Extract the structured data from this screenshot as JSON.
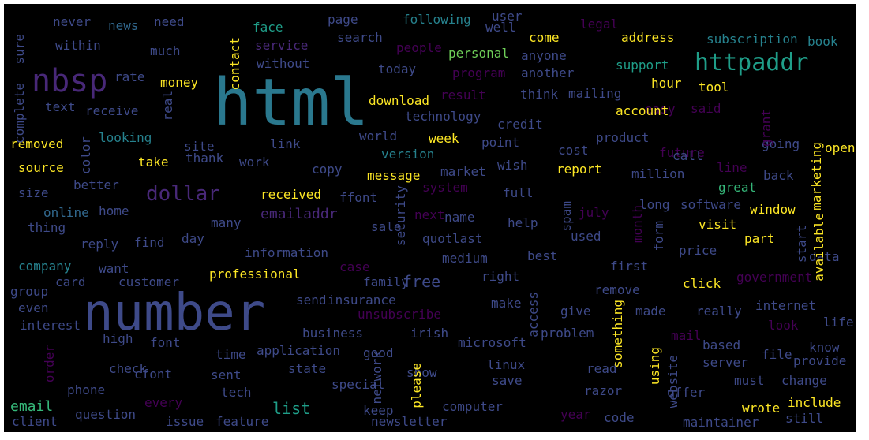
{
  "colors": {
    "background": "#000000",
    "palette": [
      "#b5de2b",
      "#2a788e",
      "#1f9e89",
      "#482878",
      "#fde725",
      "#35b779",
      "#3e4a89",
      "#6ece58",
      "#440154",
      "#26828e",
      "#31688e"
    ]
  },
  "words": [
    {
      "text": "html",
      "c": 1
    },
    {
      "text": "number",
      "c": 6
    },
    {
      "text": "nbsp",
      "c": 3
    },
    {
      "text": "httpaddr",
      "c": 2
    },
    {
      "text": "dollar",
      "c": 3
    },
    {
      "text": "emailaddr",
      "c": 3
    },
    {
      "text": "free",
      "c": 6
    },
    {
      "text": "list",
      "c": 2
    },
    {
      "text": "email",
      "c": 5
    },
    {
      "text": "never",
      "c": 6
    },
    {
      "text": "news",
      "c": 10
    },
    {
      "text": "need",
      "c": 6
    },
    {
      "text": "face",
      "c": 2
    },
    {
      "text": "page",
      "c": 6
    },
    {
      "text": "following",
      "c": 9
    },
    {
      "text": "user",
      "c": 6
    },
    {
      "text": "legal",
      "c": 8
    },
    {
      "text": "within",
      "c": 6
    },
    {
      "text": "much",
      "c": 6
    },
    {
      "text": "service",
      "c": 3
    },
    {
      "text": "search",
      "c": 6
    },
    {
      "text": "people",
      "c": 8
    },
    {
      "text": "well",
      "c": 6
    },
    {
      "text": "come",
      "c": 4
    },
    {
      "text": "address",
      "c": 4
    },
    {
      "text": "subscription",
      "c": 9
    },
    {
      "text": "book",
      "c": 9
    },
    {
      "text": "without",
      "c": 6
    },
    {
      "text": "personal",
      "c": 7
    },
    {
      "text": "anyone",
      "c": 6
    },
    {
      "text": "support",
      "c": 2
    },
    {
      "text": "rate",
      "c": 6
    },
    {
      "text": "money",
      "c": 4
    },
    {
      "text": "today",
      "c": 6
    },
    {
      "text": "program",
      "c": 8
    },
    {
      "text": "another",
      "c": 6
    },
    {
      "text": "hour",
      "c": 4
    },
    {
      "text": "tool",
      "c": 4
    },
    {
      "text": "text",
      "c": 6
    },
    {
      "text": "receive",
      "c": 6
    },
    {
      "text": "download",
      "c": 4
    },
    {
      "text": "result",
      "c": 8
    },
    {
      "text": "think",
      "c": 6
    },
    {
      "text": "mailing",
      "c": 6
    },
    {
      "text": "easy",
      "c": 8
    },
    {
      "text": "said",
      "c": 8
    },
    {
      "text": "technology",
      "c": 6
    },
    {
      "text": "account",
      "c": 4
    },
    {
      "text": "credit",
      "c": 6
    },
    {
      "text": "looking",
      "c": 9
    },
    {
      "text": "world",
      "c": 6
    },
    {
      "text": "week",
      "c": 4
    },
    {
      "text": "product",
      "c": 6
    },
    {
      "text": "future",
      "c": 8
    },
    {
      "text": "removed",
      "c": 4
    },
    {
      "text": "site",
      "c": 6
    },
    {
      "text": "link",
      "c": 6
    },
    {
      "text": "point",
      "c": 6
    },
    {
      "text": "cost",
      "c": 6
    },
    {
      "text": "call",
      "c": 6
    },
    {
      "text": "going",
      "c": 6
    },
    {
      "text": "open",
      "c": 4
    },
    {
      "text": "version",
      "c": 9
    },
    {
      "text": "source",
      "c": 4
    },
    {
      "text": "take",
      "c": 4
    },
    {
      "text": "thank",
      "c": 6
    },
    {
      "text": "work",
      "c": 6
    },
    {
      "text": "copy",
      "c": 6
    },
    {
      "text": "market",
      "c": 6
    },
    {
      "text": "wish",
      "c": 6
    },
    {
      "text": "report",
      "c": 4
    },
    {
      "text": "million",
      "c": 6
    },
    {
      "text": "line",
      "c": 8
    },
    {
      "text": "back",
      "c": 6
    },
    {
      "text": "message",
      "c": 4
    },
    {
      "text": "size",
      "c": 6
    },
    {
      "text": "better",
      "c": 6
    },
    {
      "text": "system",
      "c": 8
    },
    {
      "text": "full",
      "c": 6
    },
    {
      "text": "great",
      "c": 5
    },
    {
      "text": "received",
      "c": 4
    },
    {
      "text": "ffont",
      "c": 6
    },
    {
      "text": "home",
      "c": 6
    },
    {
      "text": "online",
      "c": 10
    },
    {
      "text": "long",
      "c": 6
    },
    {
      "text": "software",
      "c": 6
    },
    {
      "text": "window",
      "c": 4
    },
    {
      "text": "many",
      "c": 6
    },
    {
      "text": "next",
      "c": 8
    },
    {
      "text": "name",
      "c": 6
    },
    {
      "text": "help",
      "c": 6
    },
    {
      "text": "july",
      "c": 8
    },
    {
      "text": "visit",
      "c": 4
    },
    {
      "text": "thing",
      "c": 6
    },
    {
      "text": "sale",
      "c": 6
    },
    {
      "text": "reply",
      "c": 6
    },
    {
      "text": "find",
      "c": 6
    },
    {
      "text": "day",
      "c": 6
    },
    {
      "text": "quot",
      "c": 6
    },
    {
      "text": "last",
      "c": 6
    },
    {
      "text": "used",
      "c": 6
    },
    {
      "text": "part",
      "c": 4
    },
    {
      "text": "information",
      "c": 6
    },
    {
      "text": "company",
      "c": 9
    },
    {
      "text": "medium",
      "c": 6
    },
    {
      "text": "best",
      "c": 6
    },
    {
      "text": "first",
      "c": 6
    },
    {
      "text": "price",
      "c": 6
    },
    {
      "text": "data",
      "c": 6
    },
    {
      "text": "want",
      "c": 6
    },
    {
      "text": "case",
      "c": 8
    },
    {
      "text": "card",
      "c": 6
    },
    {
      "text": "professional",
      "c": 4
    },
    {
      "text": "right",
      "c": 6
    },
    {
      "text": "click",
      "c": 4
    },
    {
      "text": "government",
      "c": 8
    },
    {
      "text": "group",
      "c": 6
    },
    {
      "text": "customer",
      "c": 6
    },
    {
      "text": "family",
      "c": 6
    },
    {
      "text": "remove",
      "c": 6
    },
    {
      "text": "even",
      "c": 6
    },
    {
      "text": "send",
      "c": 6
    },
    {
      "text": "insurance",
      "c": 6
    },
    {
      "text": "make",
      "c": 6
    },
    {
      "text": "give",
      "c": 6
    },
    {
      "text": "made",
      "c": 6
    },
    {
      "text": "really",
      "c": 6
    },
    {
      "text": "internet",
      "c": 6
    },
    {
      "text": "interest",
      "c": 6
    },
    {
      "text": "unsubscribe",
      "c": 8
    },
    {
      "text": "look",
      "c": 8
    },
    {
      "text": "life",
      "c": 6
    },
    {
      "text": "business",
      "c": 6
    },
    {
      "text": "irish",
      "c": 6
    },
    {
      "text": "problem",
      "c": 6
    },
    {
      "text": "mail",
      "c": 8
    },
    {
      "text": "high",
      "c": 6
    },
    {
      "text": "font",
      "c": 6
    },
    {
      "text": "application",
      "c": 6
    },
    {
      "text": "microsoft",
      "c": 6
    },
    {
      "text": "based",
      "c": 6
    },
    {
      "text": "file",
      "c": 6
    },
    {
      "text": "know",
      "c": 6
    },
    {
      "text": "time",
      "c": 6
    },
    {
      "text": "good",
      "c": 6
    },
    {
      "text": "linux",
      "c": 6
    },
    {
      "text": "provide",
      "c": 6
    },
    {
      "text": "check",
      "c": 6
    },
    {
      "text": "cfont",
      "c": 6
    },
    {
      "text": "state",
      "c": 6
    },
    {
      "text": "show",
      "c": 6
    },
    {
      "text": "read",
      "c": 6
    },
    {
      "text": "server",
      "c": 6
    },
    {
      "text": "phone",
      "c": 6
    },
    {
      "text": "sent",
      "c": 6
    },
    {
      "text": "must",
      "c": 6
    },
    {
      "text": "change",
      "c": 6
    },
    {
      "text": "tech",
      "c": 6
    },
    {
      "text": "special",
      "c": 6
    },
    {
      "text": "save",
      "c": 6
    },
    {
      "text": "offer",
      "c": 6
    },
    {
      "text": "razor",
      "c": 6
    },
    {
      "text": "every",
      "c": 8
    },
    {
      "text": "computer",
      "c": 6
    },
    {
      "text": "wrote",
      "c": 4
    },
    {
      "text": "include",
      "c": 4
    },
    {
      "text": "question",
      "c": 6
    },
    {
      "text": "keep",
      "c": 6
    },
    {
      "text": "year",
      "c": 8
    },
    {
      "text": "code",
      "c": 6
    },
    {
      "text": "maintainer",
      "c": 6
    },
    {
      "text": "still",
      "c": 6
    },
    {
      "text": "client",
      "c": 6
    },
    {
      "text": "issue",
      "c": 6
    },
    {
      "text": "feature",
      "c": 6
    },
    {
      "text": "newsletter",
      "c": 6
    },
    {
      "text": "complete",
      "c": 6
    },
    {
      "text": "sure",
      "c": 6
    },
    {
      "text": "contact",
      "c": 4
    },
    {
      "text": "real",
      "c": 6
    },
    {
      "text": "color",
      "c": 6
    },
    {
      "text": "grant",
      "c": 8
    },
    {
      "text": "marketing",
      "c": 4
    },
    {
      "text": "available",
      "c": 4
    },
    {
      "text": "security",
      "c": 6
    },
    {
      "text": "spam",
      "c": 6
    },
    {
      "text": "month",
      "c": 8
    },
    {
      "text": "form",
      "c": 6
    },
    {
      "text": "start",
      "c": 6
    },
    {
      "text": "access",
      "c": 6
    },
    {
      "text": "please",
      "c": 4
    },
    {
      "text": "network",
      "c": 6
    },
    {
      "text": "something",
      "c": 4
    },
    {
      "text": "using",
      "c": 4
    },
    {
      "text": "website",
      "c": 6
    },
    {
      "text": "order",
      "c": 8
    }
  ]
}
